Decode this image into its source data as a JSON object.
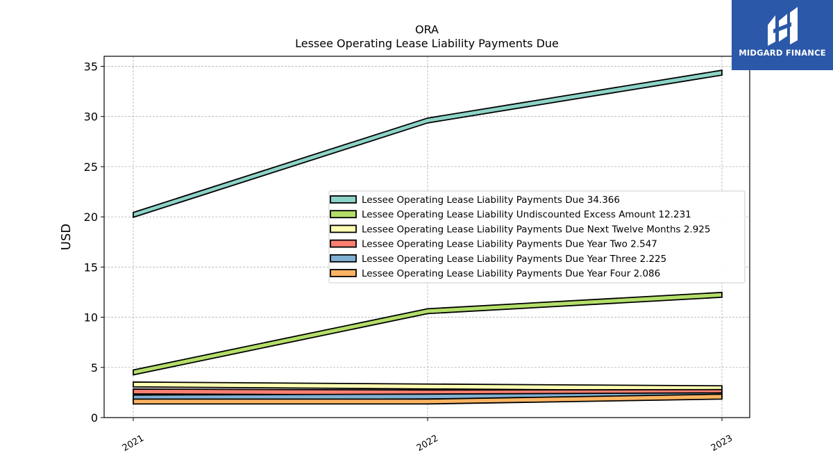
{
  "chart_data": {
    "type": "line",
    "title": "ORA",
    "subtitle": "Lessee Operating Lease Liability Payments Due",
    "ylabel": "USD",
    "xlabel": "",
    "categories": [
      "2021",
      "2022",
      "2023"
    ],
    "ylim": [
      0,
      36
    ],
    "yticks": [
      0,
      5,
      10,
      15,
      20,
      25,
      30,
      35
    ],
    "grid": true,
    "legend_position": "center-right",
    "series": [
      {
        "name": "Lessee Operating Lease Liability Payments Due",
        "legend_value": "34.366",
        "values": [
          20.2,
          29.6,
          34.366
        ],
        "color": "#8dd3c7"
      },
      {
        "name": "Lessee Operating Lease Liability Undiscounted Excess Amount",
        "legend_value": "12.231",
        "values": [
          4.5,
          10.6,
          12.231
        ],
        "color": "#b3de69"
      },
      {
        "name": "Lessee Operating Lease Liability Payments Due Next Twelve Months",
        "legend_value": "2.925",
        "values": [
          3.3,
          3.1,
          2.925
        ],
        "color": "#ffffb3"
      },
      {
        "name": "Lessee Operating Lease Liability Payments Due Year Two",
        "legend_value": "2.547",
        "values": [
          2.6,
          2.5,
          2.547
        ],
        "color": "#fb8072"
      },
      {
        "name": "Lessee Operating Lease Liability Payments Due Year Three",
        "legend_value": "2.225",
        "values": [
          2.0,
          2.1,
          2.225
        ],
        "color": "#80b1d3"
      },
      {
        "name": "Lessee Operating Lease Liability Payments Due Year Four",
        "legend_value": "2.086",
        "values": [
          1.6,
          1.6,
          2.086
        ],
        "color": "#fdb462"
      }
    ]
  },
  "logo": {
    "text": "MIDGARD FINANCE"
  }
}
